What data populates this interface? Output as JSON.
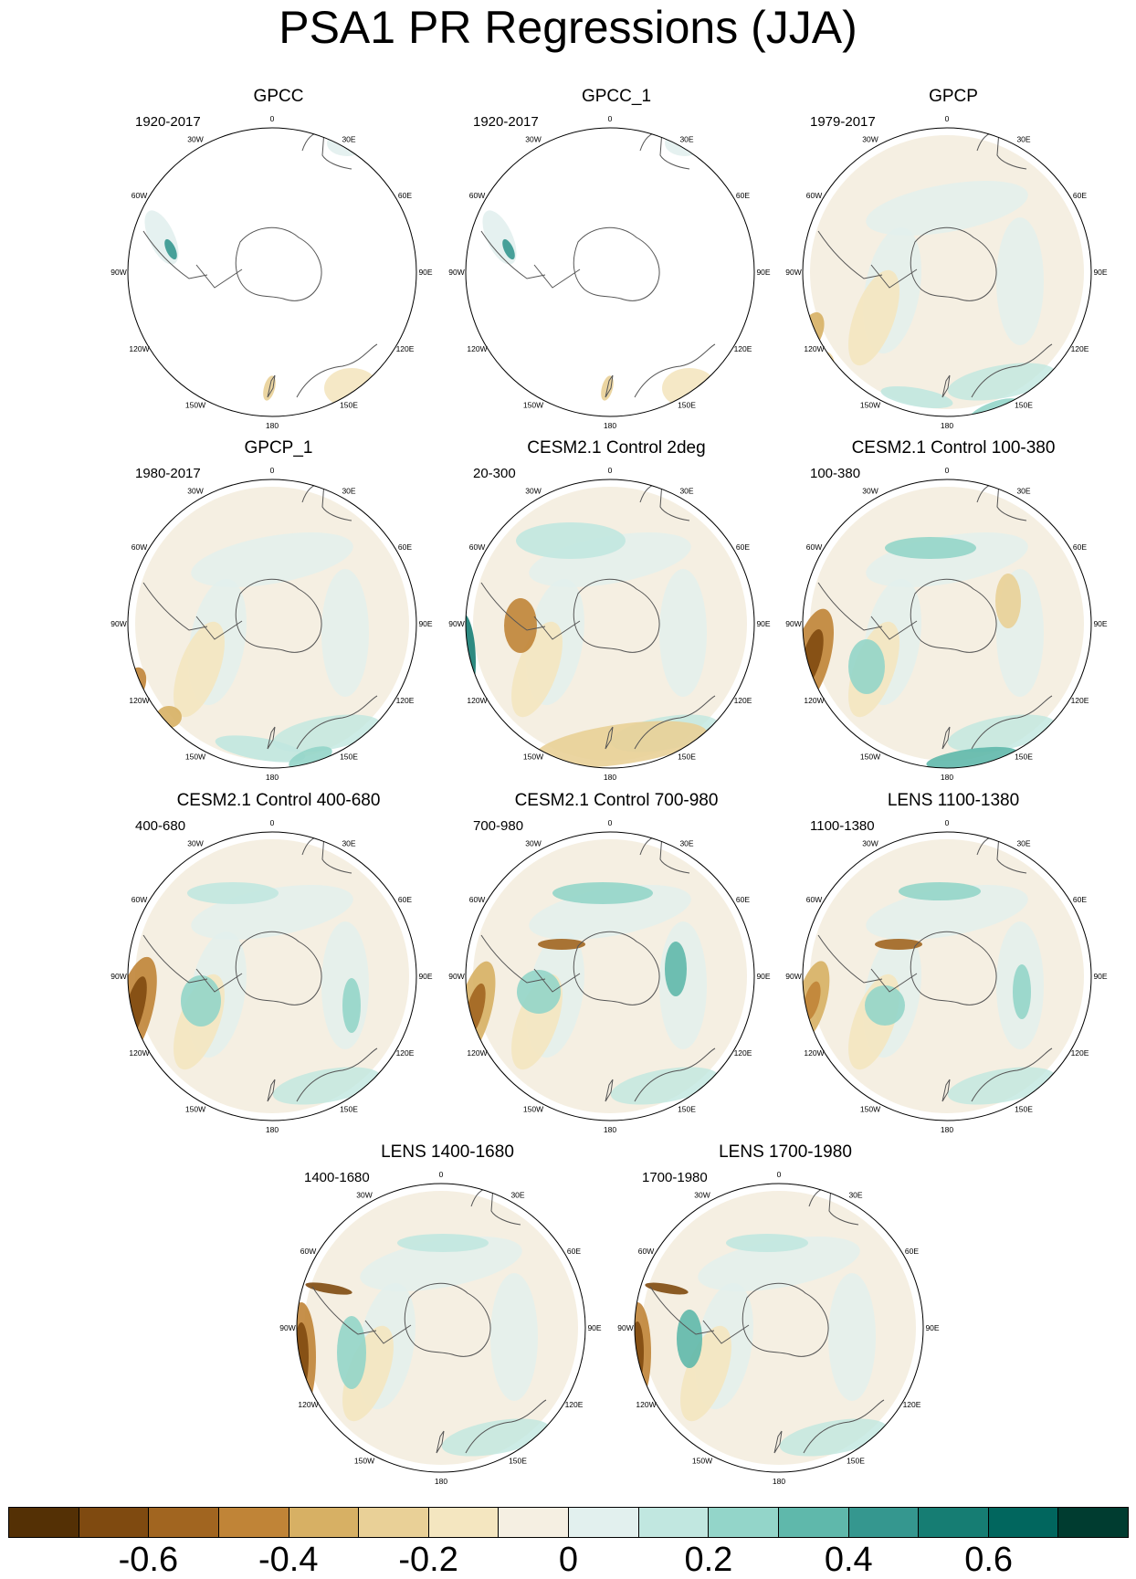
{
  "title": "PSA1 PR Regressions (JJA)",
  "longitude_labels": [
    "0",
    "30E",
    "60E",
    "90E",
    "120E",
    "150E",
    "180",
    "150W",
    "120W",
    "90W",
    "60W",
    "30W"
  ],
  "panels": [
    {
      "title": "GPCC",
      "period": "1920-2017",
      "coverage": "land-only"
    },
    {
      "title": "GPCC_1",
      "period": "1920-2017",
      "coverage": "land-only"
    },
    {
      "title": "GPCP",
      "period": "1979-2017",
      "coverage": "global"
    },
    {
      "title": "GPCP_1",
      "period": "1980-2017",
      "coverage": "global"
    },
    {
      "title": "CESM2.1 Control 2deg",
      "period": "20-300",
      "coverage": "global"
    },
    {
      "title": "CESM2.1 Control 100-380",
      "period": "100-380",
      "coverage": "global"
    },
    {
      "title": "CESM2.1 Control 400-680",
      "period": "400-680",
      "coverage": "global"
    },
    {
      "title": "CESM2.1 Control 700-980",
      "period": "700-980",
      "coverage": "global"
    },
    {
      "title": "LENS 1100-1380",
      "period": "1100-1380",
      "coverage": "global"
    },
    {
      "title": "LENS 1400-1680",
      "period": "1400-1680",
      "coverage": "global"
    },
    {
      "title": "LENS 1700-1980",
      "period": "1700-1980",
      "coverage": "global"
    }
  ],
  "colorbar": {
    "colors": [
      "#543005",
      "#7f4a10",
      "#a16520",
      "#c08437",
      "#d7b064",
      "#e9d097",
      "#f4e6c0",
      "#f5efe2",
      "#e2f0ee",
      "#c1e7e0",
      "#93d5c9",
      "#5fb8ab",
      "#35978f",
      "#167d73",
      "#01665e",
      "#003c30"
    ],
    "labels": [
      "-0.6",
      "-0.4",
      "-0.2",
      "0",
      "0.2",
      "0.4",
      "0.6"
    ]
  }
}
